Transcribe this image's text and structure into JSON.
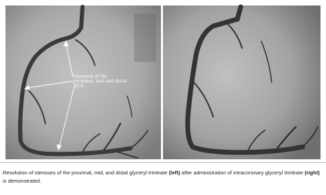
{
  "figure": {
    "annotation": "Stenoses of the proximal, mid and distal RCA"
  },
  "caption": {
    "parts": [
      {
        "text": "Resolution of stenoses of the proximal, mid, and distal glyceryl trinitrate ",
        "bold": false
      },
      {
        "text": "(left)",
        "bold": true
      },
      {
        "text": " after administration of intracoronary glyceryl trinitrate ",
        "bold": false
      },
      {
        "text": "(right)",
        "bold": true
      },
      {
        "text": " is demonstrated.",
        "bold": false
      }
    ]
  }
}
